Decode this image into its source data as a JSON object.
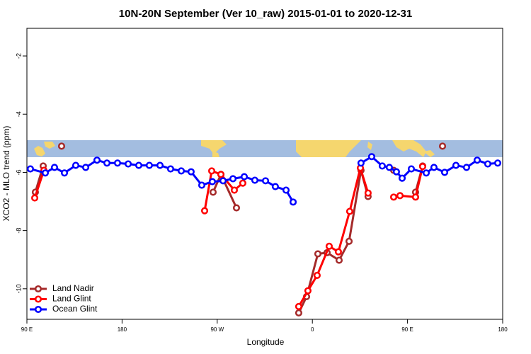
{
  "chart_data": {
    "type": "line",
    "title": "10N-20N September (Ver 10_raw)   2015-01-01 to 2020-12-31",
    "xlabel": "Longitude",
    "ylabel": "XCO2 - MLO trend (ppm)",
    "xlim": [
      90,
      540
    ],
    "xticks": [
      {
        "value": 90,
        "label": "90 E"
      },
      {
        "value": 180,
        "label": "180"
      },
      {
        "value": 270,
        "label": "90 W"
      },
      {
        "value": 360,
        "label": "0"
      },
      {
        "value": 450,
        "label": "90 E"
      },
      {
        "value": 540,
        "label": "180"
      }
    ],
    "ylim": [
      -11.05,
      -1.05
    ],
    "yticks": [
      -10,
      -8,
      -6,
      -4,
      -2
    ],
    "legend": "bottom-left",
    "series": [
      {
        "name": "Land Nadir",
        "color": "#a52a2a",
        "x": [
          98,
          105.4,
          null,
          122.8,
          null,
          266.1,
          273.5,
          288.2,
          null,
          347.1,
          354.5,
          365.2,
          373.9,
          385.3,
          394.7,
          406,
          412.7,
          null,
          436.9,
          null,
          457.6,
          464.3,
          null,
          483.1
        ],
        "values": [
          -6.68,
          -5.78,
          null,
          -5.1,
          null,
          -6.68,
          -6.07,
          -7.22,
          null,
          -10.83,
          -10.27,
          -8.8,
          -8.76,
          -9.02,
          -8.37,
          -5.93,
          -6.83,
          null,
          -5.93,
          null,
          -6.68,
          -5.78,
          null,
          -5.1
        ]
      },
      {
        "name": "Land Glint",
        "color": "#ff0000",
        "x": [
          97.4,
          106.1,
          null,
          258.1,
          264.8,
          273.5,
          286.2,
          294.2,
          null,
          347.1,
          355.8,
          364.5,
          375.9,
          384.6,
          395.3,
          405.4,
          412.7,
          null,
          436.9,
          442.9,
          457.6,
          464.3
        ],
        "values": [
          -6.88,
          -5.93,
          null,
          -7.32,
          -5.95,
          -6.07,
          -6.61,
          -6.37,
          null,
          -10.61,
          -10.07,
          -9.54,
          -8.54,
          -8.73,
          -7.34,
          -5.85,
          -6.71,
          null,
          -6.85,
          -6.8,
          -6.85,
          -5.8
        ]
      },
      {
        "name": "Ocean Glint",
        "color": "#0000ff",
        "x": [
          93.3,
          107.4,
          116.1,
          125.5,
          136.2,
          145.6,
          156.3,
          165.7,
          175.7,
          185.8,
          195.8,
          205.8,
          215.9,
          225.9,
          236,
          245.3,
          255.4,
          265.4,
          275.5,
          284.9,
          295.6,
          305.6,
          315.7,
          325,
          335.1,
          341.8,
          null,
          406,
          416.1,
          426.1,
          432.8,
          439.5,
          444.9,
          453.6,
          467.7,
          475,
          485.1,
          495.8,
          505.8,
          515.9,
          525.9,
          535.3
        ],
        "values": [
          -5.88,
          -6.02,
          -5.83,
          -6.02,
          -5.76,
          -5.83,
          -5.58,
          -5.68,
          -5.68,
          -5.71,
          -5.76,
          -5.76,
          -5.76,
          -5.88,
          -5.95,
          -5.98,
          -6.44,
          -6.32,
          -6.29,
          -6.22,
          -6.15,
          -6.27,
          -6.29,
          -6.49,
          -6.61,
          -7.02,
          null,
          -5.68,
          -5.46,
          -5.78,
          -5.83,
          -5.98,
          -6.2,
          -5.88,
          -6.02,
          -5.83,
          -6,
          -5.76,
          -5.83,
          -5.58,
          -5.71,
          -5.68
        ]
      }
    ]
  }
}
